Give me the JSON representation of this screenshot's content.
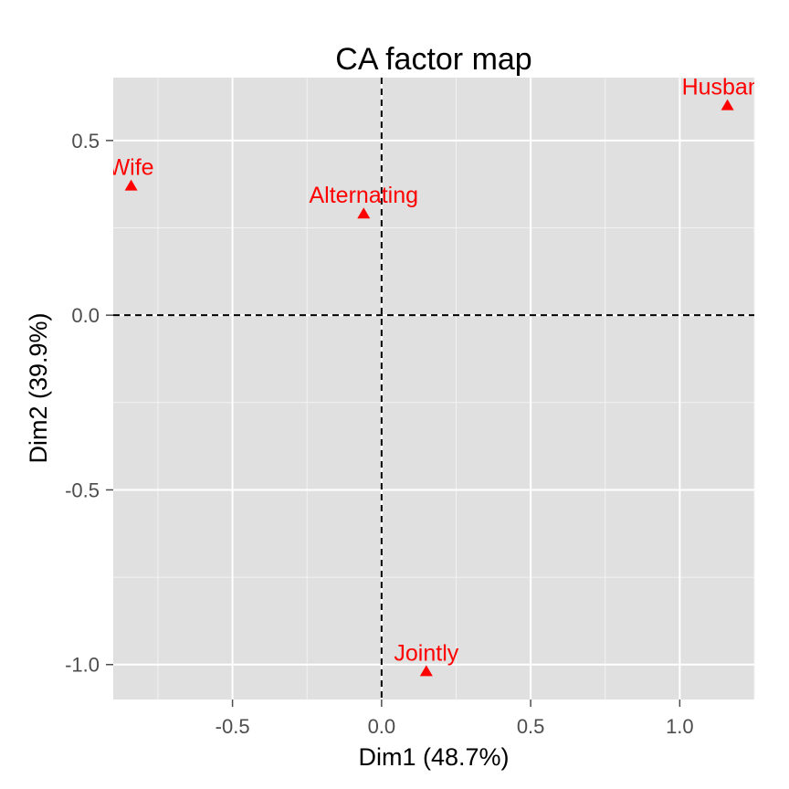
{
  "chart_data": {
    "type": "scatter",
    "title": "CA factor map",
    "xlabel": "Dim1 (48.7%)",
    "ylabel": "Dim2 (39.9%)",
    "xlim": [
      -0.9,
      1.25
    ],
    "ylim": [
      -1.1,
      0.68
    ],
    "x_ticks": [
      -0.5,
      0.0,
      0.5,
      1.0
    ],
    "x_tick_labels": [
      "-0.5",
      "0.0",
      "0.5",
      "1.0"
    ],
    "y_ticks": [
      0.5,
      0.0,
      -0.5,
      -1.0
    ],
    "y_tick_labels": [
      "0.5",
      "0.0",
      "-0.5",
      "-1.0"
    ],
    "grid": true,
    "reference_lines": {
      "x": 0,
      "y": 0,
      "style": "dashed"
    },
    "point_color": "#ff0000",
    "panel_background": "#e0e0e0",
    "points": [
      {
        "label": "Husband",
        "x": 1.16,
        "y": 0.6
      },
      {
        "label": "Wife",
        "x": -0.84,
        "y": 0.37
      },
      {
        "label": "Alternating",
        "x": -0.06,
        "y": 0.29
      },
      {
        "label": "Jointly",
        "x": 0.15,
        "y": -1.02
      }
    ]
  }
}
